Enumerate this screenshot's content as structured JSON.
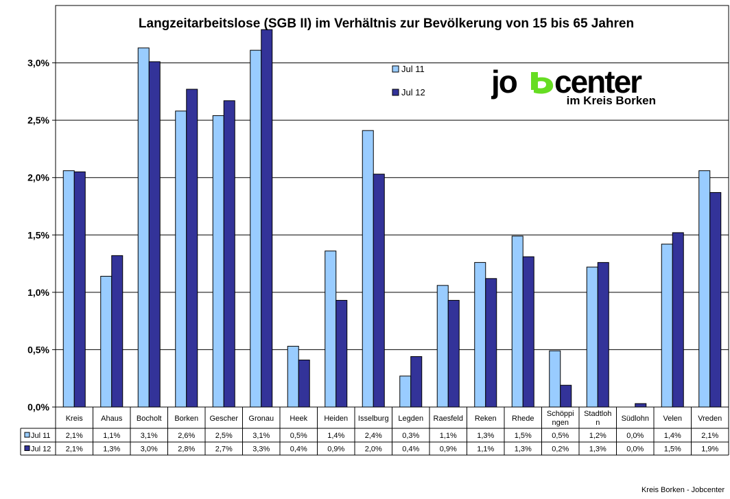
{
  "chart_data": {
    "type": "bar",
    "title": "Langzeitarbeitslose (SGB II) im Verhältnis zur Bevölkerung von 15 bis 65 Jahren",
    "categories": [
      [
        "Kreis"
      ],
      [
        "Ahaus"
      ],
      [
        "Bocholt"
      ],
      [
        "Borken"
      ],
      [
        "Gescher"
      ],
      [
        "Gronau"
      ],
      [
        "Heek"
      ],
      [
        "Heiden"
      ],
      [
        "Isselburg"
      ],
      [
        "Legden"
      ],
      [
        "Raesfeld"
      ],
      [
        "Reken"
      ],
      [
        "Rhede"
      ],
      [
        "Schöppi",
        "ngen"
      ],
      [
        "Stadtloh",
        "n"
      ],
      [
        "Südlohn"
      ],
      [
        "Velen"
      ],
      [
        "Vreden"
      ]
    ],
    "series": [
      {
        "name": "Jul 11",
        "color": "#99ccff",
        "values": [
          2.06,
          1.14,
          3.13,
          2.58,
          2.54,
          3.11,
          0.53,
          1.36,
          2.41,
          0.27,
          1.06,
          1.26,
          1.49,
          0.49,
          1.22,
          0.0,
          1.42,
          2.06
        ],
        "labels": [
          "2,1%",
          "1,1%",
          "3,1%",
          "2,6%",
          "2,5%",
          "3,1%",
          "0,5%",
          "1,4%",
          "2,4%",
          "0,3%",
          "1,1%",
          "1,3%",
          "1,5%",
          "0,5%",
          "1,2%",
          "0,0%",
          "1,4%",
          "2,1%"
        ]
      },
      {
        "name": "Jul 12",
        "color": "#333399",
        "values": [
          2.05,
          1.32,
          3.01,
          2.77,
          2.67,
          3.29,
          0.41,
          0.93,
          2.03,
          0.44,
          0.93,
          1.12,
          1.31,
          0.19,
          1.26,
          0.03,
          1.52,
          1.87
        ],
        "labels": [
          "2,1%",
          "1,3%",
          "3,0%",
          "2,8%",
          "2,7%",
          "3,3%",
          "0,4%",
          "0,9%",
          "2,0%",
          "0,4%",
          "0,9%",
          "1,1%",
          "1,3%",
          "0,2%",
          "1,3%",
          "0,0%",
          "1,5%",
          "1,9%"
        ]
      }
    ],
    "ylim": [
      0,
      3.5
    ],
    "yticks": [
      0,
      0.5,
      1.0,
      1.5,
      2.0,
      2.5,
      3.0
    ],
    "ytick_labels": [
      "0,0%",
      "0,5%",
      "1,0%",
      "1,5%",
      "2,0%",
      "2,5%",
      "3,0%"
    ],
    "grid": true,
    "legend_position": "top-center",
    "data_table": true
  },
  "logo": {
    "brand_prefix": "jo",
    "brand_suffix": "center",
    "subtitle": "im Kreis Borken",
    "accent_color": "#66dd22"
  },
  "footer": {
    "credit": "Kreis Borken - Jobcenter"
  }
}
